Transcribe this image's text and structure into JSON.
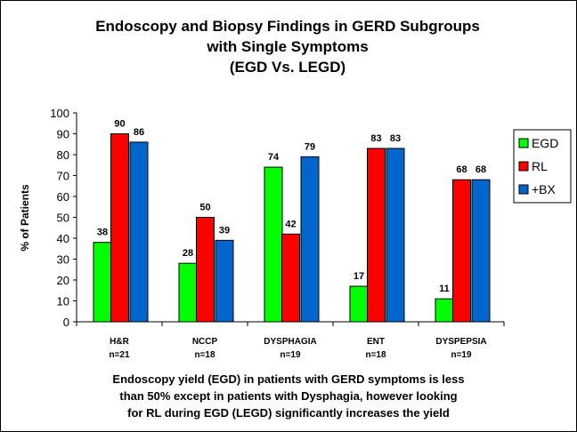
{
  "title_lines": [
    "Endoscopy and Biopsy Findings in GERD Subgroups",
    "with Single Symptoms",
    "(EGD Vs. LEGD)"
  ],
  "caption_lines": [
    "Endoscopy yield (EGD) in patients with GERD symptoms is less",
    "than 50% except in patients with Dysphagia, however looking",
    "for RL during EGD (LEGD) significantly increases the yield"
  ],
  "chart_data": {
    "type": "bar",
    "ylabel": "% of Patients",
    "ylim": [
      0,
      100
    ],
    "yticks": [
      0,
      10,
      20,
      30,
      40,
      50,
      60,
      70,
      80,
      90,
      100
    ],
    "grid": false,
    "legend_position": "right",
    "categories": [
      {
        "name": "H&R",
        "n": "n=21"
      },
      {
        "name": "NCCP",
        "n": "n=18"
      },
      {
        "name": "DYSPHAGIA",
        "n": "n=19"
      },
      {
        "name": "ENT",
        "n": "n=18"
      },
      {
        "name": "DYSPEPSIA",
        "n": "n=19"
      }
    ],
    "series": [
      {
        "name": "EGD",
        "color": "#00ff00",
        "values": [
          38,
          28,
          74,
          17,
          11
        ]
      },
      {
        "name": "RL",
        "color": "#ff0000",
        "values": [
          90,
          50,
          42,
          83,
          68
        ]
      },
      {
        "name": "+BX",
        "color": "#0066cc",
        "values": [
          86,
          39,
          79,
          83,
          68
        ]
      }
    ]
  }
}
